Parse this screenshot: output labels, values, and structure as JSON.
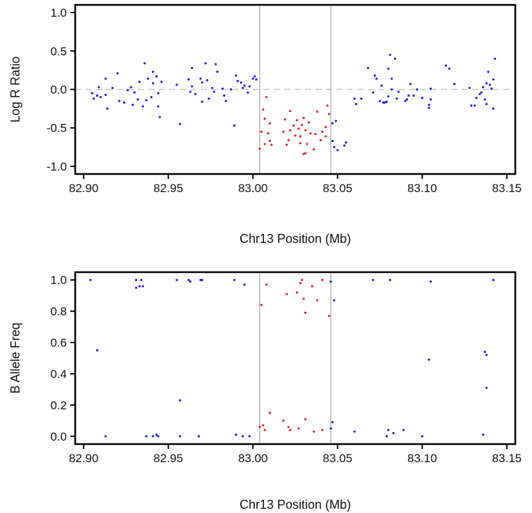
{
  "colors": {
    "outside": "#1a1adb",
    "inside": "#e02020",
    "boundary": "#b9b9b9",
    "zero_line": "#c4c4c4",
    "frame": "#000000"
  },
  "chart_data": [
    {
      "type": "scatter",
      "xlabel": "Chr13 Position (Mb)",
      "ylabel": "Log R Ratio",
      "xlim": [
        82.895,
        83.155
      ],
      "ylim": [
        -1.1,
        1.1
      ],
      "xticks": [
        "82.90",
        "82.95",
        "83.00",
        "83.05",
        "83.10",
        "83.15"
      ],
      "yticks": [
        "1.0",
        "0.5",
        "0.0",
        "-0.5",
        "-1.0"
      ],
      "reference_line": 0,
      "region_bounds": [
        83.004,
        83.046
      ],
      "grid": false,
      "series": [
        {
          "points": [
            [
              82.905,
              -0.05
            ],
            [
              82.906,
              -0.12
            ],
            [
              82.908,
              -0.08
            ],
            [
              82.909,
              0.03
            ],
            [
              82.91,
              -0.1
            ],
            [
              82.913,
              0.14
            ],
            [
              82.913,
              -0.07
            ],
            [
              82.914,
              -0.25
            ],
            [
              82.917,
              0.02
            ],
            [
              82.92,
              0.21
            ],
            [
              82.921,
              -0.15
            ],
            [
              82.924,
              -0.17
            ],
            [
              82.926,
              -0.01
            ],
            [
              82.928,
              0.03
            ],
            [
              82.929,
              -0.2
            ],
            [
              82.93,
              -0.04
            ],
            [
              82.932,
              -0.13
            ],
            [
              82.933,
              0.1
            ],
            [
              82.935,
              -0.22
            ],
            [
              82.936,
              0.34
            ],
            [
              82.937,
              -0.14
            ],
            [
              82.938,
              0.14
            ],
            [
              82.94,
              -0.1
            ],
            [
              82.941,
              0.23
            ],
            [
              82.941,
              0.08
            ],
            [
              82.943,
              0.17
            ],
            [
              82.944,
              -0.05
            ],
            [
              82.944,
              -0.22
            ],
            [
              82.945,
              -0.36
            ],
            [
              82.946,
              0.1
            ],
            [
              82.955,
              0.06
            ],
            [
              82.957,
              -0.45
            ],
            [
              82.962,
              0.13
            ],
            [
              82.963,
              -0.03
            ],
            [
              82.964,
              0.28
            ],
            [
              82.964,
              0.04
            ],
            [
              82.966,
              -0.06
            ],
            [
              82.969,
              0.14
            ],
            [
              82.97,
              0.09
            ],
            [
              82.97,
              -0.16
            ],
            [
              82.972,
              0.34
            ],
            [
              82.973,
              0.12
            ],
            [
              82.974,
              -0.12
            ],
            [
              82.976,
              0.02
            ],
            [
              82.977,
              -0.03
            ],
            [
              82.978,
              0.33
            ],
            [
              82.979,
              0.23
            ],
            [
              82.982,
              0.01
            ],
            [
              82.983,
              -0.08
            ],
            [
              82.984,
              -0.15
            ],
            [
              82.987,
              0.0
            ],
            [
              82.989,
              -0.47
            ],
            [
              82.99,
              0.18
            ],
            [
              82.991,
              0.11
            ],
            [
              82.993,
              0.09
            ],
            [
              82.994,
              0.02
            ],
            [
              82.995,
              0.05
            ],
            [
              82.997,
              -0.04
            ],
            [
              82.998,
              0.04
            ],
            [
              83.0,
              0.14
            ],
            [
              83.001,
              0.17
            ],
            [
              83.002,
              0.13
            ],
            [
              83.047,
              -0.44
            ],
            [
              83.047,
              -0.67
            ],
            [
              83.048,
              -0.75
            ],
            [
              83.049,
              -0.41
            ],
            [
              83.05,
              -0.79
            ],
            [
              83.054,
              -0.73
            ],
            [
              83.055,
              -0.69
            ],
            [
              83.06,
              -0.12
            ],
            [
              83.061,
              -0.19
            ],
            [
              83.064,
              -0.12
            ],
            [
              83.068,
              0.28
            ],
            [
              83.071,
              -0.04
            ],
            [
              83.072,
              0.18
            ],
            [
              83.073,
              0.14
            ],
            [
              83.075,
              -0.15
            ],
            [
              83.076,
              0.05
            ],
            [
              83.077,
              -0.17
            ],
            [
              83.078,
              -0.17
            ],
            [
              83.079,
              -0.16
            ],
            [
              83.08,
              -0.09
            ],
            [
              83.08,
              0.27
            ],
            [
              83.081,
              0.45
            ],
            [
              83.082,
              0.0
            ],
            [
              83.082,
              0.14
            ],
            [
              83.084,
              0.4
            ],
            [
              83.085,
              -0.12
            ],
            [
              83.086,
              -0.03
            ],
            [
              83.09,
              -0.15
            ],
            [
              83.091,
              -0.13
            ],
            [
              83.092,
              -0.08
            ],
            [
              83.093,
              0.07
            ],
            [
              83.095,
              -0.08
            ],
            [
              83.097,
              0.0
            ],
            [
              83.1,
              -0.11
            ],
            [
              83.104,
              -0.2
            ],
            [
              83.104,
              -0.24
            ],
            [
              83.105,
              -0.13
            ],
            [
              83.105,
              0.01
            ],
            [
              83.114,
              0.31
            ],
            [
              83.116,
              0.27
            ],
            [
              83.119,
              0.07
            ],
            [
              83.128,
              0.02
            ],
            [
              83.129,
              -0.21
            ],
            [
              83.131,
              -0.21
            ],
            [
              83.132,
              -0.11
            ],
            [
              83.134,
              -0.06
            ],
            [
              83.135,
              -0.04
            ],
            [
              83.136,
              0.03
            ],
            [
              83.137,
              -0.13
            ],
            [
              83.138,
              0.08
            ],
            [
              83.138,
              -0.19
            ],
            [
              83.139,
              0.23
            ],
            [
              83.14,
              0.06
            ],
            [
              83.141,
              0.01
            ],
            [
              83.142,
              -0.25
            ],
            [
              83.142,
              0.13
            ],
            [
              83.143,
              0.4
            ]
          ]
        },
        {
          "points": [
            [
              83.004,
              -0.77
            ],
            [
              83.005,
              -0.55
            ],
            [
              83.006,
              -0.26
            ],
            [
              83.007,
              -0.38
            ],
            [
              83.007,
              -0.71
            ],
            [
              83.008,
              -0.1
            ],
            [
              83.009,
              -0.57
            ],
            [
              83.01,
              -0.67
            ],
            [
              83.01,
              -0.44
            ],
            [
              83.011,
              -0.72
            ],
            [
              83.018,
              -0.55
            ],
            [
              83.019,
              -0.39
            ],
            [
              83.02,
              -0.72
            ],
            [
              83.021,
              -0.66
            ],
            [
              83.022,
              -0.28
            ],
            [
              83.022,
              -0.53
            ],
            [
              83.024,
              -0.47
            ],
            [
              83.025,
              -0.6
            ],
            [
              83.026,
              -0.4
            ],
            [
              83.027,
              -0.51
            ],
            [
              83.028,
              -0.61
            ],
            [
              83.028,
              -0.7
            ],
            [
              83.029,
              -0.46
            ],
            [
              83.03,
              -0.37
            ],
            [
              83.03,
              -0.84
            ],
            [
              83.031,
              -0.53
            ],
            [
              83.031,
              -0.83
            ],
            [
              83.032,
              -0.71
            ],
            [
              83.033,
              -0.43
            ],
            [
              83.034,
              -0.57
            ],
            [
              83.036,
              -0.78
            ],
            [
              83.037,
              -0.58
            ],
            [
              83.038,
              -0.29
            ],
            [
              83.04,
              -0.66
            ],
            [
              83.041,
              -0.55
            ],
            [
              83.043,
              -0.61
            ],
            [
              83.043,
              -0.49
            ],
            [
              83.044,
              -0.21
            ],
            [
              83.045,
              -0.32
            ]
          ]
        }
      ]
    },
    {
      "type": "scatter",
      "xlabel": "Chr13 Position (Mb)",
      "ylabel": "B Allele Freq",
      "xlim": [
        82.895,
        83.155
      ],
      "ylim": [
        -0.05,
        1.05
      ],
      "xticks": [
        "82.90",
        "82.95",
        "83.00",
        "83.05",
        "83.10",
        "83.15"
      ],
      "yticks": [
        "1.0",
        "0.8",
        "0.6",
        "0.4",
        "0.2",
        "0.0"
      ],
      "region_bounds": [
        83.004,
        83.046
      ],
      "grid": false,
      "series": [
        {
          "points": [
            [
              82.904,
              1.0
            ],
            [
              82.908,
              0.55
            ],
            [
              82.913,
              0.0
            ],
            [
              82.931,
              0.95
            ],
            [
              82.931,
              1.0
            ],
            [
              82.933,
              0.96
            ],
            [
              82.934,
              1.0
            ],
            [
              82.935,
              0.96
            ],
            [
              82.937,
              0.0
            ],
            [
              82.941,
              0.0
            ],
            [
              82.943,
              0.01
            ],
            [
              82.944,
              0.0
            ],
            [
              82.955,
              1.0
            ],
            [
              82.957,
              0.0
            ],
            [
              82.957,
              0.23
            ],
            [
              82.962,
              1.0
            ],
            [
              82.963,
              0.99
            ],
            [
              82.968,
              0.0
            ],
            [
              82.969,
              1.0
            ],
            [
              82.97,
              1.0
            ],
            [
              82.989,
              1.0
            ],
            [
              82.99,
              0.01
            ],
            [
              82.994,
              0.0
            ],
            [
              82.995,
              0.97
            ],
            [
              82.998,
              0.0
            ],
            [
              83.046,
              0.05
            ],
            [
              83.046,
              0.99
            ],
            [
              83.047,
              0.09
            ],
            [
              83.048,
              0.87
            ],
            [
              83.06,
              0.03
            ],
            [
              83.071,
              1.0
            ],
            [
              83.079,
              0.0
            ],
            [
              83.08,
              0.04
            ],
            [
              83.081,
              1.0
            ],
            [
              83.083,
              0.02
            ],
            [
              83.089,
              0.04
            ],
            [
              83.1,
              0.0
            ],
            [
              83.104,
              0.49
            ],
            [
              83.105,
              0.99
            ],
            [
              83.136,
              0.01
            ],
            [
              83.137,
              0.54
            ],
            [
              83.138,
              0.52
            ],
            [
              83.138,
              0.31
            ],
            [
              83.142,
              1.0
            ]
          ]
        },
        {
          "points": [
            [
              83.004,
              0.06
            ],
            [
              83.005,
              0.84
            ],
            [
              83.006,
              0.07
            ],
            [
              83.007,
              0.04
            ],
            [
              83.008,
              0.97
            ],
            [
              83.01,
              0.15
            ],
            [
              83.018,
              0.1
            ],
            [
              83.02,
              0.91
            ],
            [
              83.021,
              0.06
            ],
            [
              83.022,
              0.04
            ],
            [
              83.026,
              0.92
            ],
            [
              83.027,
              0.05
            ],
            [
              83.028,
              0.98
            ],
            [
              83.029,
              1.0
            ],
            [
              83.03,
              0.88
            ],
            [
              83.031,
              0.79
            ],
            [
              83.031,
              0.11
            ],
            [
              83.035,
              0.96
            ],
            [
              83.036,
              0.03
            ],
            [
              83.038,
              0.87
            ],
            [
              83.041,
              1.0
            ],
            [
              83.041,
              0.04
            ],
            [
              83.045,
              0.77
            ]
          ]
        }
      ]
    }
  ]
}
